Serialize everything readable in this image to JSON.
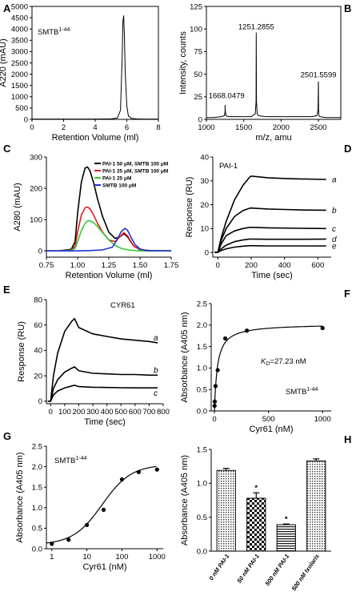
{
  "panels": {
    "A": "A",
    "B": "B",
    "C": "C",
    "D": "D",
    "E": "E",
    "F": "F",
    "G": "G",
    "H": "H"
  },
  "chart_data": [
    {
      "id": "A",
      "type": "line",
      "ylabel": "A220 (mAU)",
      "xlabel": "Retention Volume (ml)",
      "annotation": "SMTB",
      "annotation_sup": "1-44",
      "xlim": [
        0,
        8
      ],
      "ylim": [
        0,
        5000
      ],
      "xticks": [
        0,
        2,
        4,
        6,
        8
      ],
      "yticks": [
        0,
        500,
        1000,
        1500,
        2000,
        2500,
        3000,
        3500,
        4000,
        4500,
        5000
      ],
      "series": [
        {
          "x": [
            0,
            1,
            2,
            3,
            4,
            5,
            5.4,
            5.6,
            5.7,
            5.75,
            5.8,
            5.85,
            5.9,
            6.0,
            6.1,
            6.3,
            6.6,
            7,
            8
          ],
          "y": [
            15,
            15,
            15,
            15,
            15,
            20,
            60,
            400,
            2600,
            4300,
            4600,
            3700,
            2100,
            600,
            150,
            40,
            20,
            15,
            15
          ]
        }
      ]
    },
    {
      "id": "B",
      "type": "line",
      "ylabel": "Intensity, counts",
      "xlabel": "m/z, amu",
      "xlim": [
        1000,
        2800
      ],
      "ylim": [
        0,
        125
      ],
      "xticks": [
        1000,
        1500,
        2000,
        2500
      ],
      "yticks": [
        0,
        25,
        50,
        75,
        100,
        125
      ],
      "peak_labels": [
        "1251.2855",
        "1668.0479",
        "2501.5599"
      ],
      "series": [
        {
          "x": [
            1000,
            1100,
            1200,
            1240,
            1250,
            1251,
            1252,
            1262,
            1300,
            1400,
            1600,
            1655,
            1665,
            1668,
            1671,
            1680,
            1700,
            1800,
            2000,
            2200,
            2400,
            2480,
            2495,
            2500,
            2502,
            2507,
            2520,
            2600,
            2700,
            2800
          ],
          "y": [
            2,
            2,
            3,
            4,
            8,
            16,
            10,
            4,
            3,
            3,
            3,
            6,
            20,
            96,
            20,
            6,
            4,
            3,
            3,
            3,
            3,
            4,
            10,
            42,
            10,
            4,
            3,
            2,
            2,
            2
          ]
        }
      ]
    },
    {
      "id": "C",
      "type": "line",
      "ylabel": "A280 (mAU)",
      "xlabel": "Retention Volume (ml)",
      "xlim": [
        0.75,
        1.75
      ],
      "ylim": [
        -20,
        300
      ],
      "xticks": [
        0.75,
        1.0,
        1.25,
        1.5,
        1.75
      ],
      "yticks": [
        0,
        100,
        200,
        300
      ],
      "legend": [
        {
          "name": "PAI-1 50 μM, SMTB 100 μM",
          "color": "#000000"
        },
        {
          "name": "PAI-1 25 μM, SMTB 100 μM",
          "color": "#e41a1c"
        },
        {
          "name": "PAI-1 25 μM",
          "color": "#33cc33"
        },
        {
          "name": "SMTB 100 μM",
          "color": "#1f2fd6"
        }
      ],
      "series": [
        {
          "color": "#000000",
          "x": [
            0.75,
            0.85,
            0.95,
            0.98,
            1.0,
            1.03,
            1.06,
            1.08,
            1.1,
            1.13,
            1.16,
            1.2,
            1.25,
            1.3,
            1.34,
            1.37,
            1.4,
            1.45,
            1.5,
            1.6,
            1.75
          ],
          "y": [
            0,
            0,
            5,
            30,
            120,
            220,
            265,
            268,
            255,
            215,
            165,
            110,
            60,
            40,
            45,
            55,
            45,
            15,
            4,
            0,
            0
          ]
        },
        {
          "color": "#e41a1c",
          "x": [
            0.75,
            0.85,
            0.95,
            0.98,
            1.0,
            1.03,
            1.06,
            1.08,
            1.1,
            1.13,
            1.16,
            1.2,
            1.25,
            1.3,
            1.34,
            1.37,
            1.4,
            1.45,
            1.5,
            1.6,
            1.75
          ],
          "y": [
            0,
            0,
            3,
            15,
            60,
            115,
            138,
            140,
            134,
            113,
            88,
            60,
            35,
            30,
            45,
            58,
            48,
            15,
            4,
            0,
            0
          ]
        },
        {
          "color": "#33cc33",
          "x": [
            0.75,
            0.85,
            0.95,
            0.98,
            1.0,
            1.03,
            1.06,
            1.08,
            1.1,
            1.13,
            1.16,
            1.2,
            1.25,
            1.3,
            1.35,
            1.4,
            1.5,
            1.6,
            1.75
          ],
          "y": [
            0,
            0,
            2,
            8,
            30,
            65,
            88,
            96,
            96,
            90,
            78,
            58,
            35,
            18,
            8,
            3,
            0,
            0,
            0
          ]
        },
        {
          "color": "#1f2fd6",
          "x": [
            0.75,
            1.0,
            1.1,
            1.2,
            1.28,
            1.32,
            1.35,
            1.38,
            1.4,
            1.43,
            1.46,
            1.5,
            1.55,
            1.75
          ],
          "y": [
            0,
            0,
            1,
            3,
            12,
            38,
            62,
            72,
            66,
            42,
            20,
            6,
            1,
            0
          ]
        }
      ]
    },
    {
      "id": "D",
      "type": "line",
      "ylabel": "Response (RU)",
      "xlabel": "Time (sec)",
      "annotation": "PAI-1",
      "xlim": [
        -30,
        680
      ],
      "ylim": [
        -2,
        40
      ],
      "xticks": [
        0,
        200,
        400,
        600
      ],
      "yticks": [
        0,
        10,
        20,
        30,
        40
      ],
      "curve_labels": [
        "a",
        "b",
        "c",
        "d",
        "e"
      ],
      "series": [
        {
          "name": "a",
          "x": [
            -20,
            0,
            20,
            50,
            100,
            150,
            190,
            200,
            300,
            400,
            500,
            650
          ],
          "y": [
            0,
            0,
            6,
            13,
            22,
            28,
            31.5,
            32,
            31.3,
            31,
            30.8,
            30.6
          ]
        },
        {
          "name": "b",
          "x": [
            -20,
            0,
            20,
            50,
            100,
            150,
            190,
            200,
            300,
            400,
            500,
            650
          ],
          "y": [
            0,
            0,
            5,
            10,
            15,
            17.5,
            18.5,
            18.6,
            18.2,
            18,
            17.8,
            17.7
          ]
        },
        {
          "name": "c",
          "x": [
            -20,
            0,
            20,
            50,
            100,
            150,
            190,
            200,
            300,
            400,
            500,
            650
          ],
          "y": [
            0,
            0,
            3.5,
            7,
            9,
            10,
            10.5,
            10.5,
            10.3,
            10.2,
            10.1,
            10
          ]
        },
        {
          "name": "d",
          "x": [
            -20,
            0,
            20,
            50,
            100,
            150,
            190,
            200,
            300,
            400,
            500,
            650
          ],
          "y": [
            0,
            0,
            1.5,
            3,
            4.5,
            5.2,
            5.6,
            5.6,
            5.5,
            5.5,
            5.5,
            5.6
          ]
        },
        {
          "name": "e",
          "x": [
            -20,
            0,
            20,
            50,
            100,
            150,
            190,
            200,
            300,
            400,
            500,
            650
          ],
          "y": [
            0,
            0,
            0.8,
            1.5,
            2.2,
            2.6,
            2.8,
            2.8,
            2.7,
            2.7,
            2.7,
            2.7
          ]
        }
      ]
    },
    {
      "id": "E",
      "type": "line",
      "ylabel": "Response (RU)",
      "xlabel": "Time (sec)",
      "annotation": "CYR61",
      "xlim": [
        -30,
        800
      ],
      "ylim": [
        -2,
        80
      ],
      "xticks": [
        0,
        100,
        200,
        300,
        400,
        500,
        600,
        700,
        800
      ],
      "yticks": [
        0,
        20,
        40,
        60,
        80
      ],
      "curve_labels": [
        "a",
        "b",
        "c"
      ],
      "series": [
        {
          "name": "a",
          "x": [
            -20,
            0,
            20,
            50,
            100,
            150,
            170,
            200,
            300,
            400,
            500,
            600,
            700,
            760
          ],
          "y": [
            0,
            0,
            20,
            38,
            55,
            63,
            65,
            58,
            53,
            51,
            49,
            48,
            47,
            46
          ]
        },
        {
          "name": "b",
          "x": [
            -20,
            0,
            20,
            50,
            100,
            150,
            170,
            200,
            300,
            400,
            500,
            600,
            700,
            760
          ],
          "y": [
            0,
            0,
            10,
            17,
            23,
            26,
            27,
            24,
            22,
            21.5,
            21,
            21,
            20.5,
            20.5
          ]
        },
        {
          "name": "c",
          "x": [
            -20,
            0,
            20,
            50,
            100,
            150,
            170,
            200,
            300,
            400,
            500,
            600,
            700,
            760
          ],
          "y": [
            0,
            0,
            5,
            8,
            10.5,
            12,
            12.5,
            11.5,
            11,
            10.8,
            10.6,
            10.5,
            10.5,
            10.5
          ]
        }
      ]
    },
    {
      "id": "F",
      "type": "scatter",
      "ylabel": "Absorbance (A405 nm)",
      "xlabel": "Cyr61 (nM)",
      "annotation_kd_label": "K",
      "annotation_kd_sub": "D",
      "annotation_kd_value": "=27.23 nM",
      "annotation": "SMTB",
      "annotation_sup": "1-44",
      "xlim": [
        -30,
        1080
      ],
      "ylim": [
        0,
        2.5
      ],
      "xticks": [
        0,
        500,
        1000
      ],
      "yticks": [
        0.0,
        0.5,
        1.0,
        1.5,
        2.0,
        2.5
      ],
      "points": {
        "x": [
          1,
          3,
          10,
          30,
          100,
          300,
          1000
        ],
        "y": [
          0.12,
          0.22,
          0.58,
          0.95,
          1.69,
          1.87,
          1.93
        ]
      },
      "fit": {
        "bmax": 2.03,
        "kd": 27.23
      }
    },
    {
      "id": "G",
      "type": "scatter",
      "ylabel": "Absorbance (A405 nm)",
      "xlabel": "Cyr61 (nM)",
      "annotation": "SMTB",
      "annotation_sup": "1-44",
      "xscale": "log",
      "xlim": [
        0.7,
        1500
      ],
      "ylim": [
        0,
        2.5
      ],
      "xticks": [
        1,
        10,
        100,
        1000
      ],
      "yticks": [
        0.0,
        0.5,
        1.0,
        1.5,
        2.0,
        2.5
      ],
      "points": {
        "x": [
          1,
          3,
          10,
          30,
          100,
          300,
          1000
        ],
        "y": [
          0.12,
          0.22,
          0.58,
          0.95,
          1.69,
          1.87,
          1.93
        ]
      },
      "fit": {
        "bottom": 0.1,
        "top": 2.05,
        "ec50": 27.23,
        "hill": 1.05
      }
    },
    {
      "id": "H",
      "type": "bar",
      "ylabel": "Absorbance (A405 nm)",
      "ylim": [
        0,
        1.5
      ],
      "yticks": [
        0.0,
        0.5,
        1.0,
        1.5
      ],
      "categories": [
        "0 nM PAI-1",
        "50 nM PAI-1",
        "500 nM PAI-1",
        "500 nM Ixolaris"
      ],
      "values": [
        1.19,
        0.78,
        0.39,
        1.33
      ],
      "errors": [
        0.03,
        0.08,
        0.01,
        0.03
      ],
      "significance": [
        "",
        "*",
        "*",
        ""
      ],
      "patterns": [
        "dots",
        "checker",
        "hstripes",
        "dots"
      ]
    }
  ]
}
